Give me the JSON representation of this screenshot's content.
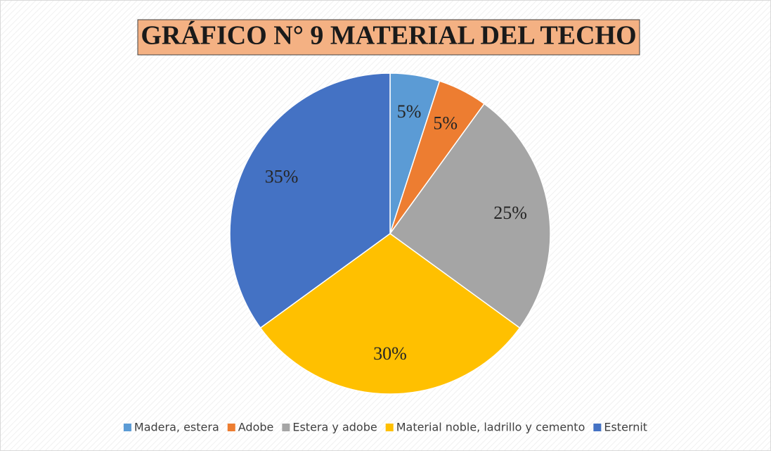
{
  "chart_data": {
    "type": "pie",
    "title": "GRÁFICO N° 9 MATERIAL DEL TECHO",
    "categories": [
      "Madera, estera",
      "Adobe",
      "Estera y adobe",
      "Material noble, ladrillo y cemento",
      "Esternit"
    ],
    "values": [
      5,
      5,
      25,
      30,
      35
    ],
    "value_labels": [
      "5%",
      "5%",
      "25%",
      "30%",
      "35%"
    ],
    "colors": [
      "#5b9bd5",
      "#ed7d31",
      "#a5a5a5",
      "#ffc000",
      "#4472c4"
    ],
    "legend": "bottom"
  }
}
